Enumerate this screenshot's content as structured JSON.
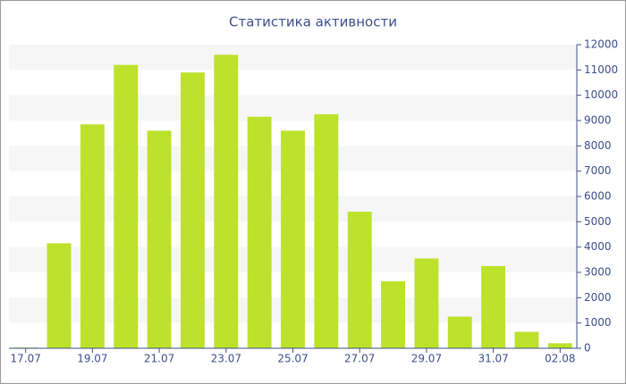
{
  "chart_data": {
    "type": "bar",
    "title": "Статистика активности",
    "categories": [
      "17.07",
      null,
      "19.07",
      null,
      "21.07",
      null,
      "23.07",
      null,
      "25.07",
      null,
      "27.07",
      null,
      "29.07",
      null,
      "31.07",
      null,
      "02.08"
    ],
    "values": [
      30,
      4150,
      8850,
      11200,
      8600,
      10900,
      11600,
      9150,
      8600,
      9250,
      5400,
      2650,
      3550,
      1250,
      3250,
      650,
      200
    ],
    "color": "#bce22b",
    "ylim": [
      0,
      12000
    ],
    "yticks": [
      0,
      1000,
      2000,
      3000,
      4000,
      5000,
      6000,
      7000,
      8000,
      9000,
      10000,
      11000,
      12000
    ],
    "grid": true,
    "y_axis_side": "right"
  }
}
